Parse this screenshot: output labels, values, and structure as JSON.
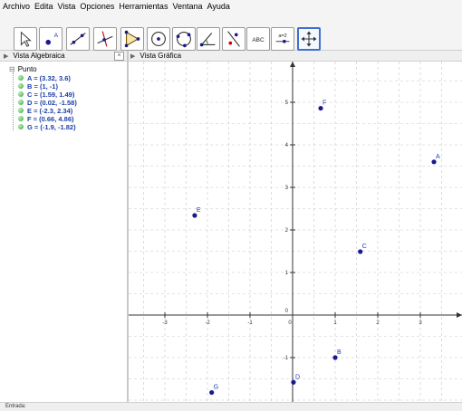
{
  "menu": [
    "Archivo",
    "Edita",
    "Vista",
    "Opciones",
    "Herramientas",
    "Ventana",
    "Ayuda"
  ],
  "toolbar": {
    "tools": [
      {
        "name": "move-tool-icon"
      },
      {
        "name": "point-tool-icon",
        "label": "A"
      },
      {
        "name": "line-tool-icon"
      },
      {
        "name": "perpendicular-tool-icon"
      },
      {
        "name": "polygon-tool-icon"
      },
      {
        "name": "circle-tool-icon"
      },
      {
        "name": "circle-three-points-tool-icon"
      },
      {
        "name": "angle-tool-icon"
      },
      {
        "name": "reflect-tool-icon"
      },
      {
        "name": "text-tool-icon",
        "label": "ABC"
      },
      {
        "name": "slider-tool-icon",
        "label": "a=2"
      },
      {
        "name": "move-graphics-view-tool-icon",
        "active": true
      }
    ]
  },
  "algebra_view": {
    "title": "Vista Algebraica",
    "group_label": "Punto",
    "items": [
      {
        "label": "A = (3.32, 3.6)"
      },
      {
        "label": "B = (1, -1)"
      },
      {
        "label": "C = (1.59, 1.49)"
      },
      {
        "label": "D = (0.02, -1.58)"
      },
      {
        "label": "E = (-2.3, 2.34)"
      },
      {
        "label": "F = (0.66, 4.86)"
      },
      {
        "label": "G = (-1.9, -1.82)"
      }
    ]
  },
  "graphics_view": {
    "title": "Vista Gráfica",
    "x_ticks": [
      "-3",
      "-2",
      "-1",
      "0",
      "1",
      "2",
      "3"
    ],
    "y_ticks": [
      "-1",
      "0",
      "1",
      "2",
      "3",
      "4",
      "5"
    ],
    "points": [
      {
        "name": "A",
        "x": 3.32,
        "y": 3.6
      },
      {
        "name": "B",
        "x": 1,
        "y": -1
      },
      {
        "name": "C",
        "x": 1.59,
        "y": 1.49
      },
      {
        "name": "D",
        "x": 0.02,
        "y": -1.58
      },
      {
        "name": "E",
        "x": -2.3,
        "y": 2.34
      },
      {
        "name": "F",
        "x": 0.66,
        "y": 4.86
      },
      {
        "name": "G",
        "x": -1.9,
        "y": -1.82
      }
    ],
    "point_color": "#1a1a8c"
  },
  "input_bar": {
    "label": "Entrada:"
  }
}
